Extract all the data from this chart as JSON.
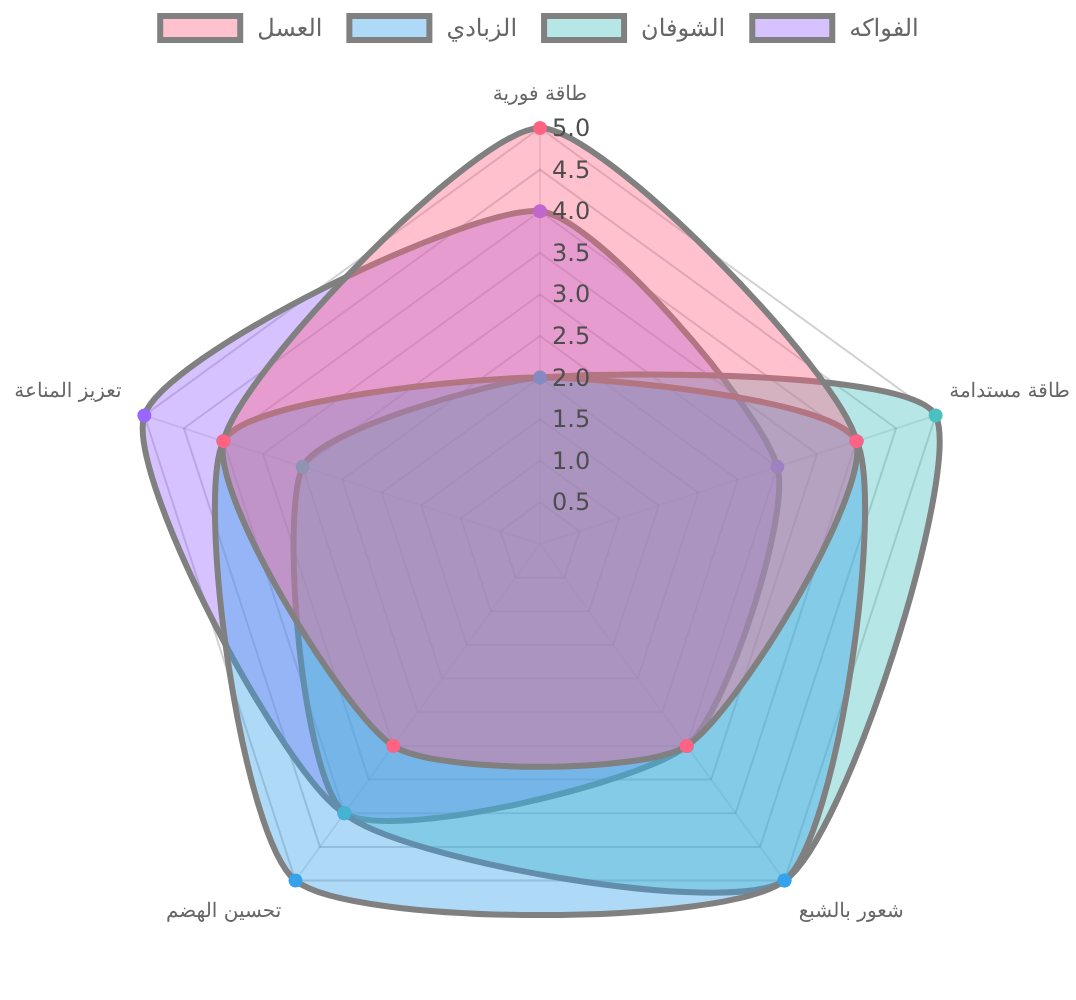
{
  "chart_data": {
    "type": "radar",
    "categories": [
      "طاقة فورية",
      "طاقة مستدامة",
      "شعور بالشبع",
      "تحسين الهضم",
      "تعزيز المناعة"
    ],
    "series": [
      {
        "name": "العسل",
        "color": "#ff6384",
        "values": [
          5,
          4,
          3,
          3,
          4
        ]
      },
      {
        "name": "الزبادي",
        "color": "#36a2eb",
        "values": [
          2,
          4,
          5,
          5,
          4
        ]
      },
      {
        "name": "الشوفان",
        "color": "#4bc0c0",
        "values": [
          2,
          5,
          5,
          4,
          3
        ]
      },
      {
        "name": "الفواكه",
        "color": "#9966ff",
        "values": [
          4,
          3,
          3,
          4,
          5
        ]
      }
    ],
    "ylim": [
      0,
      5
    ],
    "yticks": [
      0.5,
      {
        "value": 1,
        "label": "1.0"
      },
      1.5,
      {
        "value": 2,
        "label": "2.0"
      },
      2.5,
      {
        "value": 3,
        "label": "3.0"
      },
      3.5,
      {
        "value": 4,
        "label": "4.0"
      },
      4.5,
      {
        "value": 5,
        "label": "5.0"
      }
    ],
    "grid": true,
    "legend": "top",
    "marker": "circle"
  }
}
